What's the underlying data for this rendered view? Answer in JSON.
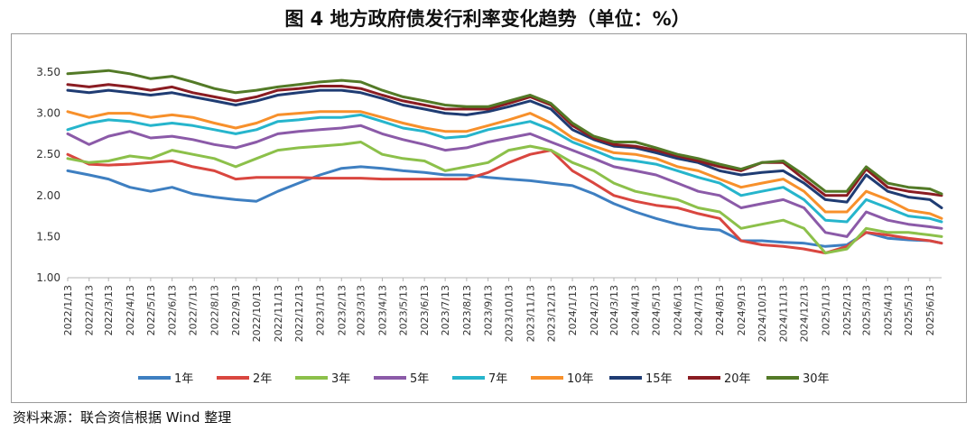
{
  "chart_data": {
    "type": "line",
    "title": "图 4  地方政府债发行利率变化趋势（单位：%）",
    "source": "资料来源：联合资信根据 Wind 整理",
    "xlabel": "",
    "ylabel": "",
    "ylim": [
      1.0,
      3.5
    ],
    "yticks": [
      "1.00",
      "1.50",
      "2.00",
      "2.50",
      "3.00",
      "3.50"
    ],
    "grid": false,
    "legend": "bottom",
    "x_start": "2022-01-13",
    "x_end": "2025-06-30",
    "xticks": [
      "2022/1/13",
      "2022/2/13",
      "2022/3/13",
      "2022/4/13",
      "2022/5/13",
      "2022/6/13",
      "2022/7/13",
      "2022/8/13",
      "2022/9/13",
      "2022/10/13",
      "2022/11/13",
      "2022/12/13",
      "2023/1/13",
      "2023/2/13",
      "2023/3/13",
      "2023/4/13",
      "2023/5/13",
      "2023/6/13",
      "2023/7/13",
      "2023/8/13",
      "2023/9/13",
      "2023/10/13",
      "2023/11/13",
      "2023/12/13",
      "2024/1/13",
      "2024/2/13",
      "2024/3/13",
      "2024/4/13",
      "2024/5/13",
      "2024/6/13",
      "2024/7/13",
      "2024/8/13",
      "2024/9/13",
      "2024/10/13",
      "2024/11/13",
      "2024/12/13",
      "2025/1/13",
      "2025/2/13",
      "2025/3/13",
      "2025/4/13",
      "2025/5/13",
      "2025/6/13"
    ],
    "x": [
      "2022-01-13",
      "2022-02-13",
      "2022-03-13",
      "2022-04-13",
      "2022-05-13",
      "2022-06-13",
      "2022-07-13",
      "2022-08-13",
      "2022-09-13",
      "2022-10-13",
      "2022-11-13",
      "2022-12-13",
      "2023-01-13",
      "2023-02-13",
      "2023-03-13",
      "2023-04-13",
      "2023-05-13",
      "2023-06-13",
      "2023-07-13",
      "2023-08-13",
      "2023-09-13",
      "2023-10-13",
      "2023-11-13",
      "2023-12-13",
      "2024-01-13",
      "2024-02-13",
      "2024-03-13",
      "2024-04-13",
      "2024-05-13",
      "2024-06-13",
      "2024-07-13",
      "2024-08-13",
      "2024-09-13",
      "2024-10-13",
      "2024-11-13",
      "2024-12-13",
      "2025-01-13",
      "2025-02-13",
      "2025-03-13",
      "2025-04-13",
      "2025-05-13",
      "2025-06-13",
      "2025-06-30"
    ],
    "series": [
      {
        "name": "1年",
        "color": "#3e7fc1",
        "values": [
          2.3,
          2.25,
          2.2,
          2.1,
          2.05,
          2.1,
          2.02,
          1.98,
          1.95,
          1.93,
          2.05,
          2.15,
          2.25,
          2.33,
          2.35,
          2.33,
          2.3,
          2.28,
          2.25,
          2.25,
          2.22,
          2.2,
          2.18,
          2.15,
          2.12,
          2.02,
          1.9,
          1.8,
          1.72,
          1.65,
          1.6,
          1.58,
          1.45,
          1.45,
          1.43,
          1.42,
          1.38,
          1.4,
          1.55,
          1.48,
          1.46,
          1.45,
          1.42
        ]
      },
      {
        "name": "2年",
        "color": "#d9463f",
        "values": [
          2.5,
          2.38,
          2.37,
          2.38,
          2.4,
          2.42,
          2.35,
          2.3,
          2.2,
          2.22,
          2.22,
          2.22,
          2.21,
          2.21,
          2.21,
          2.2,
          2.2,
          2.2,
          2.2,
          2.2,
          2.28,
          2.4,
          2.5,
          2.55,
          2.3,
          2.15,
          2.0,
          1.93,
          1.88,
          1.85,
          1.78,
          1.72,
          1.45,
          1.4,
          1.38,
          1.35,
          1.3,
          1.38,
          1.55,
          1.52,
          1.48,
          1.45,
          1.42
        ]
      },
      {
        "name": "3年",
        "color": "#8cc04a",
        "values": [
          2.45,
          2.4,
          2.42,
          2.48,
          2.45,
          2.55,
          2.5,
          2.45,
          2.35,
          2.45,
          2.55,
          2.58,
          2.6,
          2.62,
          2.65,
          2.5,
          2.45,
          2.42,
          2.3,
          2.35,
          2.4,
          2.55,
          2.6,
          2.55,
          2.4,
          2.3,
          2.15,
          2.05,
          2.0,
          1.95,
          1.85,
          1.8,
          1.6,
          1.65,
          1.7,
          1.6,
          1.3,
          1.35,
          1.6,
          1.55,
          1.55,
          1.52,
          1.5
        ]
      },
      {
        "name": "5年",
        "color": "#8b5aa8",
        "values": [
          2.75,
          2.62,
          2.72,
          2.78,
          2.7,
          2.72,
          2.68,
          2.62,
          2.58,
          2.65,
          2.75,
          2.78,
          2.8,
          2.82,
          2.85,
          2.75,
          2.68,
          2.62,
          2.55,
          2.58,
          2.65,
          2.7,
          2.75,
          2.65,
          2.55,
          2.45,
          2.35,
          2.3,
          2.25,
          2.15,
          2.05,
          2.0,
          1.85,
          1.9,
          1.95,
          1.85,
          1.55,
          1.5,
          1.8,
          1.7,
          1.65,
          1.62,
          1.6
        ]
      },
      {
        "name": "7年",
        "color": "#26b5cc",
        "values": [
          2.8,
          2.88,
          2.92,
          2.9,
          2.85,
          2.88,
          2.85,
          2.8,
          2.75,
          2.8,
          2.9,
          2.92,
          2.95,
          2.95,
          2.98,
          2.9,
          2.82,
          2.78,
          2.7,
          2.72,
          2.8,
          2.85,
          2.9,
          2.8,
          2.65,
          2.55,
          2.45,
          2.42,
          2.38,
          2.3,
          2.22,
          2.15,
          2.0,
          2.05,
          2.1,
          1.95,
          1.7,
          1.68,
          1.95,
          1.85,
          1.75,
          1.72,
          1.68
        ]
      },
      {
        "name": "10年",
        "color": "#f7902b",
        "values": [
          3.02,
          2.95,
          3.0,
          3.0,
          2.95,
          2.98,
          2.95,
          2.88,
          2.82,
          2.88,
          2.98,
          3.0,
          3.02,
          3.02,
          3.02,
          2.95,
          2.88,
          2.82,
          2.78,
          2.78,
          2.85,
          2.92,
          3.0,
          2.88,
          2.7,
          2.6,
          2.52,
          2.5,
          2.45,
          2.35,
          2.3,
          2.2,
          2.1,
          2.15,
          2.2,
          2.05,
          1.8,
          1.8,
          2.05,
          1.95,
          1.82,
          1.78,
          1.72
        ]
      },
      {
        "name": "15年",
        "color": "#1f3c73",
        "values": [
          3.28,
          3.25,
          3.28,
          3.25,
          3.22,
          3.25,
          3.2,
          3.15,
          3.1,
          3.15,
          3.22,
          3.25,
          3.28,
          3.28,
          3.25,
          3.18,
          3.1,
          3.05,
          3.0,
          2.98,
          3.02,
          3.08,
          3.15,
          3.05,
          2.8,
          2.68,
          2.6,
          2.58,
          2.52,
          2.45,
          2.4,
          2.3,
          2.25,
          2.28,
          2.3,
          2.15,
          1.95,
          1.92,
          2.25,
          2.05,
          1.98,
          1.95,
          1.85
        ]
      },
      {
        "name": "20年",
        "color": "#8a1c22",
        "values": [
          3.35,
          3.32,
          3.35,
          3.32,
          3.28,
          3.32,
          3.25,
          3.2,
          3.15,
          3.2,
          3.28,
          3.3,
          3.33,
          3.33,
          3.3,
          3.22,
          3.15,
          3.1,
          3.05,
          3.05,
          3.05,
          3.12,
          3.2,
          3.1,
          2.85,
          2.7,
          2.62,
          2.6,
          2.55,
          2.48,
          2.42,
          2.35,
          2.3,
          2.4,
          2.4,
          2.2,
          2.0,
          2.0,
          2.32,
          2.1,
          2.05,
          2.02,
          2.0
        ]
      },
      {
        "name": "30年",
        "color": "#537a27",
        "values": [
          3.48,
          3.5,
          3.52,
          3.48,
          3.42,
          3.45,
          3.38,
          3.3,
          3.25,
          3.28,
          3.32,
          3.35,
          3.38,
          3.4,
          3.38,
          3.28,
          3.2,
          3.15,
          3.1,
          3.08,
          3.08,
          3.15,
          3.22,
          3.12,
          2.88,
          2.72,
          2.65,
          2.65,
          2.58,
          2.5,
          2.45,
          2.38,
          2.32,
          2.4,
          2.42,
          2.25,
          2.05,
          2.05,
          2.35,
          2.15,
          2.1,
          2.08,
          2.02
        ]
      }
    ]
  }
}
